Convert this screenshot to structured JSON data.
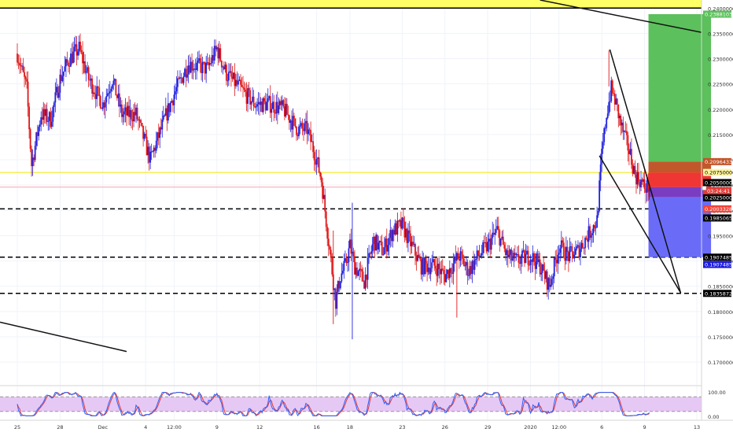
{
  "chart_data": {
    "type": "candlestick",
    "price_axis": {
      "ylim": [
        0.1655,
        0.2416
      ],
      "ticks": [
        {
          "v": 0.24,
          "label": "0.24000000"
        },
        {
          "v": 0.235,
          "label": "0.23500000"
        },
        {
          "v": 0.23,
          "label": "0.23000000"
        },
        {
          "v": 0.225,
          "label": "0.22500000"
        },
        {
          "v": 0.22,
          "label": "0.22000000"
        },
        {
          "v": 0.215,
          "label": "0.21500000"
        },
        {
          "v": 0.21,
          "label": "0.21000000"
        },
        {
          "v": 0.205,
          "label": "0.20500000"
        },
        {
          "v": 0.2,
          "label": "0.20000000"
        },
        {
          "v": 0.195,
          "label": "0.19500000"
        },
        {
          "v": 0.19,
          "label": "0.19000000"
        },
        {
          "v": 0.185,
          "label": "0.18500000"
        },
        {
          "v": 0.18,
          "label": "0.18000000"
        },
        {
          "v": 0.175,
          "label": "0.17500000"
        },
        {
          "v": 0.17,
          "label": "0.17000000"
        }
      ]
    },
    "time_axis": [
      {
        "t": 0,
        "label": "25"
      },
      {
        "t": 9,
        "label": "28"
      },
      {
        "t": 18,
        "label": "Dec"
      },
      {
        "t": 27,
        "label": "4"
      },
      {
        "t": 33,
        "label": "12:00"
      },
      {
        "t": 42,
        "label": "9"
      },
      {
        "t": 51,
        "label": "12"
      },
      {
        "t": 63,
        "label": "16"
      },
      {
        "t": 70,
        "label": "18"
      },
      {
        "t": 81,
        "label": "23"
      },
      {
        "t": 90,
        "label": "26"
      },
      {
        "t": 99,
        "label": "29"
      },
      {
        "t": 108,
        "label": "2020"
      },
      {
        "t": 114,
        "label": "12:00"
      },
      {
        "t": 123,
        "label": "6"
      },
      {
        "t": 132,
        "label": "9"
      },
      {
        "t": 143,
        "label": "13"
      }
    ],
    "series_anchors": [
      [
        0,
        0.231
      ],
      [
        2,
        0.224
      ],
      [
        3,
        0.209
      ],
      [
        5,
        0.219
      ],
      [
        7,
        0.218
      ],
      [
        9,
        0.226
      ],
      [
        11,
        0.23
      ],
      [
        13,
        0.232
      ],
      [
        15,
        0.226
      ],
      [
        18,
        0.221
      ],
      [
        20,
        0.226
      ],
      [
        22,
        0.219
      ],
      [
        25,
        0.219
      ],
      [
        28,
        0.21
      ],
      [
        31,
        0.218
      ],
      [
        33,
        0.223
      ],
      [
        36,
        0.229
      ],
      [
        40,
        0.228
      ],
      [
        42,
        0.232
      ],
      [
        44,
        0.227
      ],
      [
        47,
        0.224
      ],
      [
        50,
        0.221
      ],
      [
        53,
        0.221
      ],
      [
        56,
        0.22
      ],
      [
        59,
        0.216
      ],
      [
        61,
        0.216
      ],
      [
        63,
        0.21
      ],
      [
        64,
        0.206
      ],
      [
        65,
        0.198
      ],
      [
        66,
        0.19
      ],
      [
        67,
        0.182
      ],
      [
        68,
        0.187
      ],
      [
        69,
        0.189
      ],
      [
        70,
        0.193
      ],
      [
        71,
        0.189
      ],
      [
        73,
        0.186
      ],
      [
        75,
        0.194
      ],
      [
        77,
        0.192
      ],
      [
        79,
        0.196
      ],
      [
        81,
        0.197
      ],
      [
        83,
        0.193
      ],
      [
        85,
        0.189
      ],
      [
        88,
        0.189
      ],
      [
        90,
        0.187
      ],
      [
        93,
        0.191
      ],
      [
        95,
        0.188
      ],
      [
        97,
        0.191
      ],
      [
        99,
        0.193
      ],
      [
        101,
        0.196
      ],
      [
        103,
        0.191
      ],
      [
        105,
        0.19
      ],
      [
        108,
        0.191
      ],
      [
        110,
        0.189
      ],
      [
        112,
        0.185
      ],
      [
        114,
        0.193
      ],
      [
        116,
        0.191
      ],
      [
        118,
        0.192
      ],
      [
        120,
        0.195
      ],
      [
        122,
        0.198
      ],
      [
        123,
        0.211
      ],
      [
        124,
        0.219
      ],
      [
        125,
        0.224
      ],
      [
        126,
        0.221
      ],
      [
        127,
        0.217
      ],
      [
        128,
        0.214
      ],
      [
        129,
        0.211
      ],
      [
        130,
        0.207
      ],
      [
        131,
        0.206
      ],
      [
        132,
        0.2046
      ]
    ],
    "stochastic": {
      "ylim": [
        0,
        100
      ],
      "ticks": [
        {
          "v": 100,
          "label": "100.00"
        },
        {
          "v": 0,
          "label": "0.00"
        }
      ],
      "upper_band": 80,
      "lower_band": 20
    }
  },
  "price_labels": [
    {
      "v": 0.2388,
      "label": "0.23881032",
      "bg": "#5ac15a",
      "fg": "#ffffff"
    },
    {
      "v": 0.20964,
      "label": "0.20964332",
      "bg": "#c2552a",
      "fg": "#ffffff"
    },
    {
      "v": 0.2075,
      "label": "0.20750000",
      "bg": "#fff59d",
      "fg": "#000000"
    },
    {
      "v": 0.2055,
      "label": "0.20500000",
      "bg": "#000000",
      "fg": "#ffffff"
    },
    {
      "v": 0.2026,
      "label": "0.20260482",
      "bg": "#f44336",
      "fg": "#ffffff"
    },
    {
      "v": 0.2025,
      "label": "0.20250000",
      "bg": "#000000",
      "fg": "#ffffff"
    },
    {
      "v": 0.2003,
      "label": "0.20033287",
      "bg": "#f44336",
      "fg": "#ffffff"
    },
    {
      "v": 0.1985,
      "label": "0.19850658",
      "bg": "#000000",
      "fg": "#ffffff"
    },
    {
      "v": 0.19074859,
      "label": "0.19074859",
      "bg": "#000000",
      "fg": "#ffffff"
    },
    {
      "v": 0.1893,
      "label": "0.19074859",
      "bg": "#1a1ae0",
      "fg": "#ffffff"
    },
    {
      "v": 0.18358721,
      "label": "0.18358721",
      "bg": "#000000",
      "fg": "#ffffff"
    }
  ],
  "countdown": {
    "v": 0.2039,
    "label": "03:24:41",
    "bg": "#e53935",
    "fg": "#ffffff"
  },
  "levels": {
    "yellow_line": 0.2075,
    "pink_line": 0.2046,
    "dashed": [
      0.2003,
      0.19074859,
      0.18358721
    ],
    "top_band": 0.24
  },
  "position": {
    "t_start": 132,
    "t_end": 145,
    "target": 0.2388,
    "entry": 0.2046,
    "stop": 0.19074859,
    "brown_top": 0.20964,
    "red_top": 0.2075,
    "purple_bottom": 0.2026
  },
  "colors": {
    "up": "#2222dd",
    "down": "#e01818",
    "grid": "#f0f3fa",
    "axis_text": "#333333"
  },
  "icons": {
    "close_marker": "close-icon"
  }
}
